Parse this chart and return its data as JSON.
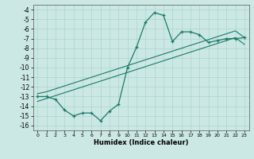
{
  "xlabel": "Humidex (Indice chaleur)",
  "bg_color": "#cce8e4",
  "grid_color": "#aad4cc",
  "line_color": "#1a7a6a",
  "xlim": [
    -0.5,
    23.5
  ],
  "ylim": [
    -16.5,
    -3.5
  ],
  "yticks": [
    -4,
    -5,
    -6,
    -7,
    -8,
    -9,
    -10,
    -11,
    -12,
    -13,
    -14,
    -15,
    -16
  ],
  "xticks": [
    0,
    1,
    2,
    3,
    4,
    5,
    6,
    7,
    8,
    9,
    10,
    11,
    12,
    13,
    14,
    15,
    16,
    17,
    18,
    19,
    20,
    21,
    22,
    23
  ],
  "line_main_x": [
    0,
    1,
    2,
    3,
    4,
    5,
    6,
    7,
    8,
    9,
    10,
    11,
    12,
    13,
    14,
    15,
    16,
    17,
    18,
    19,
    20,
    21,
    22,
    23
  ],
  "line_main_y": [
    -13.0,
    -13.0,
    -13.3,
    -14.4,
    -15.0,
    -14.7,
    -14.7,
    -15.5,
    -14.5,
    -13.8,
    -10.0,
    -7.9,
    -5.3,
    -4.3,
    -4.6,
    -7.3,
    -6.3,
    -6.3,
    -6.6,
    -7.4,
    -7.2,
    -7.0,
    -7.0,
    -6.9
  ],
  "line_upper_x": [
    0,
    1,
    2,
    3,
    4,
    5,
    6,
    7,
    8,
    9,
    10,
    11,
    12,
    13,
    14,
    15,
    16,
    17,
    18,
    19,
    20,
    21,
    22,
    23
  ],
  "line_upper_y": [
    -12.7,
    -12.5,
    -12.2,
    -11.9,
    -11.6,
    -11.3,
    -11.0,
    -10.7,
    -10.4,
    -10.1,
    -9.8,
    -9.5,
    -9.2,
    -8.9,
    -8.6,
    -8.3,
    -8.0,
    -7.7,
    -7.4,
    -7.1,
    -6.8,
    -6.5,
    -6.2,
    -6.9
  ],
  "line_lower_x": [
    0,
    1,
    2,
    3,
    4,
    5,
    6,
    7,
    8,
    9,
    10,
    11,
    12,
    13,
    14,
    15,
    16,
    17,
    18,
    19,
    20,
    21,
    22,
    23
  ],
  "line_lower_y": [
    -13.5,
    -13.2,
    -12.9,
    -12.6,
    -12.3,
    -12.0,
    -11.7,
    -11.4,
    -11.1,
    -10.8,
    -10.5,
    -10.2,
    -9.9,
    -9.6,
    -9.3,
    -9.0,
    -8.7,
    -8.4,
    -8.1,
    -7.8,
    -7.5,
    -7.2,
    -6.9,
    -7.6
  ]
}
